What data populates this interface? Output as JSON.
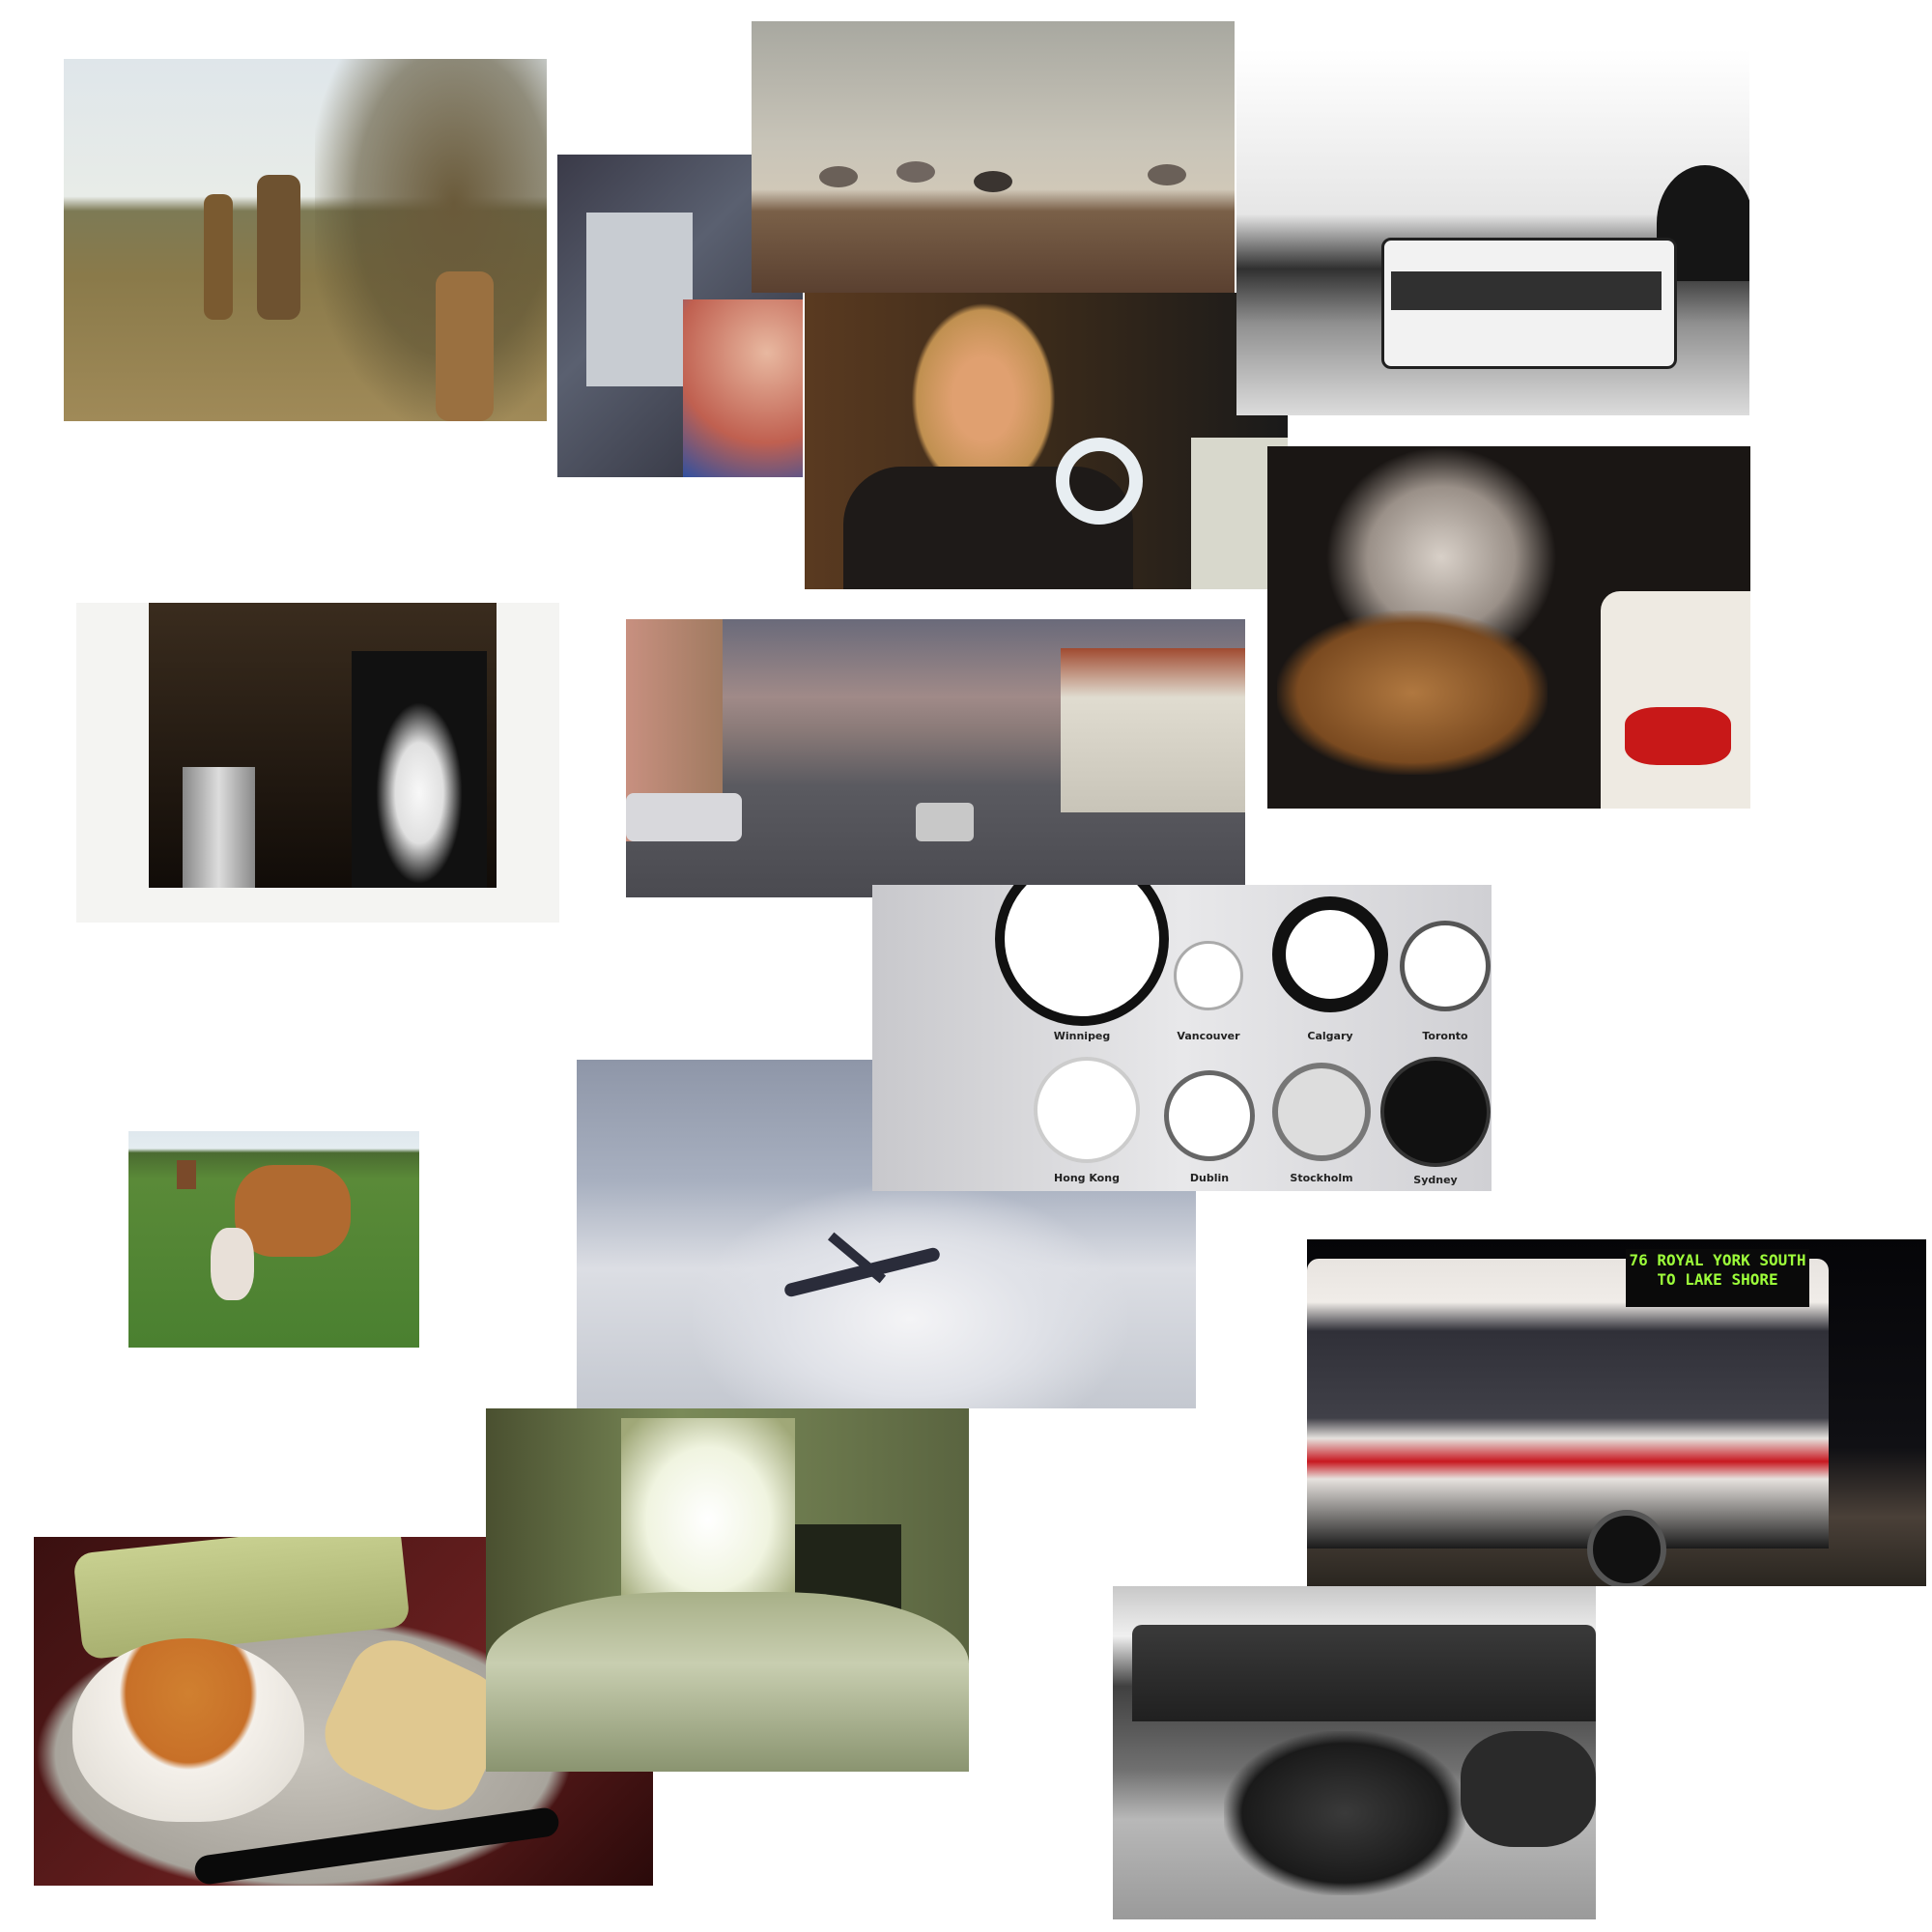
{
  "clocks": {
    "labels": [
      "Winnipeg",
      "Vancouver",
      "Calgary",
      "Toronto",
      "Hong Kong",
      "Dublin",
      "Stockholm",
      "Sydney"
    ]
  },
  "bus_sign": [
    "76 ROYAL YORK SOUTH",
    "TO LAKE SHORE"
  ]
}
